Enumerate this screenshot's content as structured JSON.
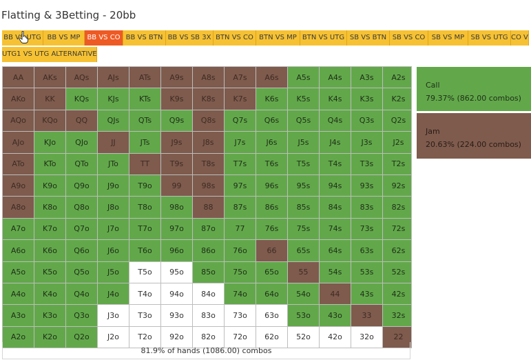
{
  "title": "Flatting & 3Betting - 20bb",
  "tabs": [
    {
      "label": "BB VS UTG",
      "active": false,
      "w": 60
    },
    {
      "label": "BB VS MP",
      "active": false,
      "w": 60
    },
    {
      "label": "BB VS CO",
      "active": true,
      "w": 56
    },
    {
      "label": "BB VS BTN",
      "active": false,
      "w": 62
    },
    {
      "label": "BB VS SB 3X",
      "active": false,
      "w": 69
    },
    {
      "label": "BTN VS CO",
      "active": false,
      "w": 62
    },
    {
      "label": "BTN VS MP",
      "active": false,
      "w": 64
    },
    {
      "label": "BTN VS UTG",
      "active": false,
      "w": 68
    },
    {
      "label": "SB VS BTN",
      "active": false,
      "w": 62
    },
    {
      "label": "SB VS CO",
      "active": false,
      "w": 56
    },
    {
      "label": "SB VS MP",
      "active": false,
      "w": 58
    },
    {
      "label": "SB VS UTG",
      "active": false,
      "w": 62
    },
    {
      "label": "CO VS",
      "active": false,
      "w": 26
    },
    {
      "label": "UTG1 VS UTG ALTERNATIVE",
      "active": false,
      "w": 138
    }
  ],
  "grid": {
    "rows": [
      [
        "AA",
        "AKs",
        "AQs",
        "AJs",
        "ATs",
        "A9s",
        "A8s",
        "A7s",
        "A6s",
        "A5s",
        "A4s",
        "A3s",
        "A2s"
      ],
      [
        "AKo",
        "KK",
        "KQs",
        "KJs",
        "KTs",
        "K9s",
        "K8s",
        "K7s",
        "K6s",
        "K5s",
        "K4s",
        "K3s",
        "K2s"
      ],
      [
        "AQo",
        "KQo",
        "QQ",
        "QJs",
        "QTs",
        "Q9s",
        "Q8s",
        "Q7s",
        "Q6s",
        "Q5s",
        "Q4s",
        "Q3s",
        "Q2s"
      ],
      [
        "AJo",
        "KJo",
        "QJo",
        "JJ",
        "JTs",
        "J9s",
        "J8s",
        "J7s",
        "J6s",
        "J5s",
        "J4s",
        "J3s",
        "J2s"
      ],
      [
        "ATo",
        "KTo",
        "QTo",
        "JTo",
        "TT",
        "T9s",
        "T8s",
        "T7s",
        "T6s",
        "T5s",
        "T4s",
        "T3s",
        "T2s"
      ],
      [
        "A9o",
        "K9o",
        "Q9o",
        "J9o",
        "T9o",
        "99",
        "98s",
        "97s",
        "96s",
        "95s",
        "94s",
        "93s",
        "92s"
      ],
      [
        "A8o",
        "K8o",
        "Q8o",
        "J8o",
        "T8o",
        "98o",
        "88",
        "87s",
        "86s",
        "85s",
        "84s",
        "83s",
        "82s"
      ],
      [
        "A7o",
        "K7o",
        "Q7o",
        "J7o",
        "T7o",
        "97o",
        "87o",
        "77",
        "76s",
        "75s",
        "74s",
        "73s",
        "72s"
      ],
      [
        "A6o",
        "K6o",
        "Q6o",
        "J6o",
        "T6o",
        "96o",
        "86o",
        "76o",
        "66",
        "65s",
        "64s",
        "63s",
        "62s"
      ],
      [
        "A5o",
        "K5o",
        "Q5o",
        "J5o",
        "T5o",
        "95o",
        "85o",
        "75o",
        "65o",
        "55",
        "54s",
        "53s",
        "52s"
      ],
      [
        "A4o",
        "K4o",
        "Q4o",
        "J4o",
        "T4o",
        "94o",
        "84o",
        "74o",
        "64o",
        "54o",
        "44",
        "43s",
        "42s"
      ],
      [
        "A3o",
        "K3o",
        "Q3o",
        "J3o",
        "T3o",
        "93o",
        "83o",
        "73o",
        "63o",
        "53o",
        "43o",
        "33",
        "32s"
      ],
      [
        "A2o",
        "K2o",
        "Q2o",
        "J2o",
        "T2o",
        "92o",
        "82o",
        "72o",
        "62o",
        "52o",
        "42o",
        "32o",
        "22"
      ]
    ],
    "actions": [
      [
        "J",
        "J",
        "J",
        "J",
        "J",
        "J",
        "J",
        "J",
        "J",
        "C",
        "C",
        "C",
        "C"
      ],
      [
        "J",
        "J",
        "C",
        "C",
        "C",
        "J",
        "J",
        "J",
        "C",
        "C",
        "C",
        "C",
        "C"
      ],
      [
        "J",
        "J",
        "J",
        "C",
        "C",
        "C",
        "J",
        "C",
        "C",
        "C",
        "C",
        "C",
        "C"
      ],
      [
        "J",
        "C",
        "C",
        "J",
        "C",
        "J",
        "J",
        "C",
        "C",
        "C",
        "C",
        "C",
        "C"
      ],
      [
        "J",
        "C",
        "C",
        "C",
        "J",
        "J",
        "J",
        "C",
        "C",
        "C",
        "C",
        "C",
        "C"
      ],
      [
        "J",
        "C",
        "C",
        "C",
        "C",
        "J",
        "J",
        "C",
        "C",
        "C",
        "C",
        "C",
        "C"
      ],
      [
        "J",
        "C",
        "C",
        "C",
        "C",
        "C",
        "J",
        "C",
        "C",
        "C",
        "C",
        "C",
        "C"
      ],
      [
        "C",
        "C",
        "C",
        "C",
        "C",
        "C",
        "C",
        "C",
        "C",
        "C",
        "C",
        "C",
        "C"
      ],
      [
        "C",
        "C",
        "C",
        "C",
        "C",
        "C",
        "C",
        "C",
        "J",
        "C",
        "C",
        "C",
        "C"
      ],
      [
        "C",
        "C",
        "C",
        "C",
        "F",
        "F",
        "C",
        "C",
        "C",
        "J",
        "C",
        "C",
        "C"
      ],
      [
        "C",
        "C",
        "C",
        "C",
        "F",
        "F",
        "F",
        "C",
        "C",
        "C",
        "J",
        "C",
        "C"
      ],
      [
        "C",
        "C",
        "C",
        "F",
        "F",
        "F",
        "F",
        "F",
        "F",
        "C",
        "C",
        "J",
        "C"
      ],
      [
        "C",
        "C",
        "C",
        "F",
        "F",
        "F",
        "F",
        "F",
        "F",
        "F",
        "F",
        "F",
        "J"
      ]
    ]
  },
  "footer": "81.9% of hands (1086.00) combos",
  "legend": {
    "call": {
      "label": "Call",
      "stat": "79.37% (862.00 combos)",
      "color": "#62a84a"
    },
    "jam": {
      "label": "Jam",
      "stat": "20.63% (224.00 combos)",
      "color": "#7e5b4d"
    }
  }
}
